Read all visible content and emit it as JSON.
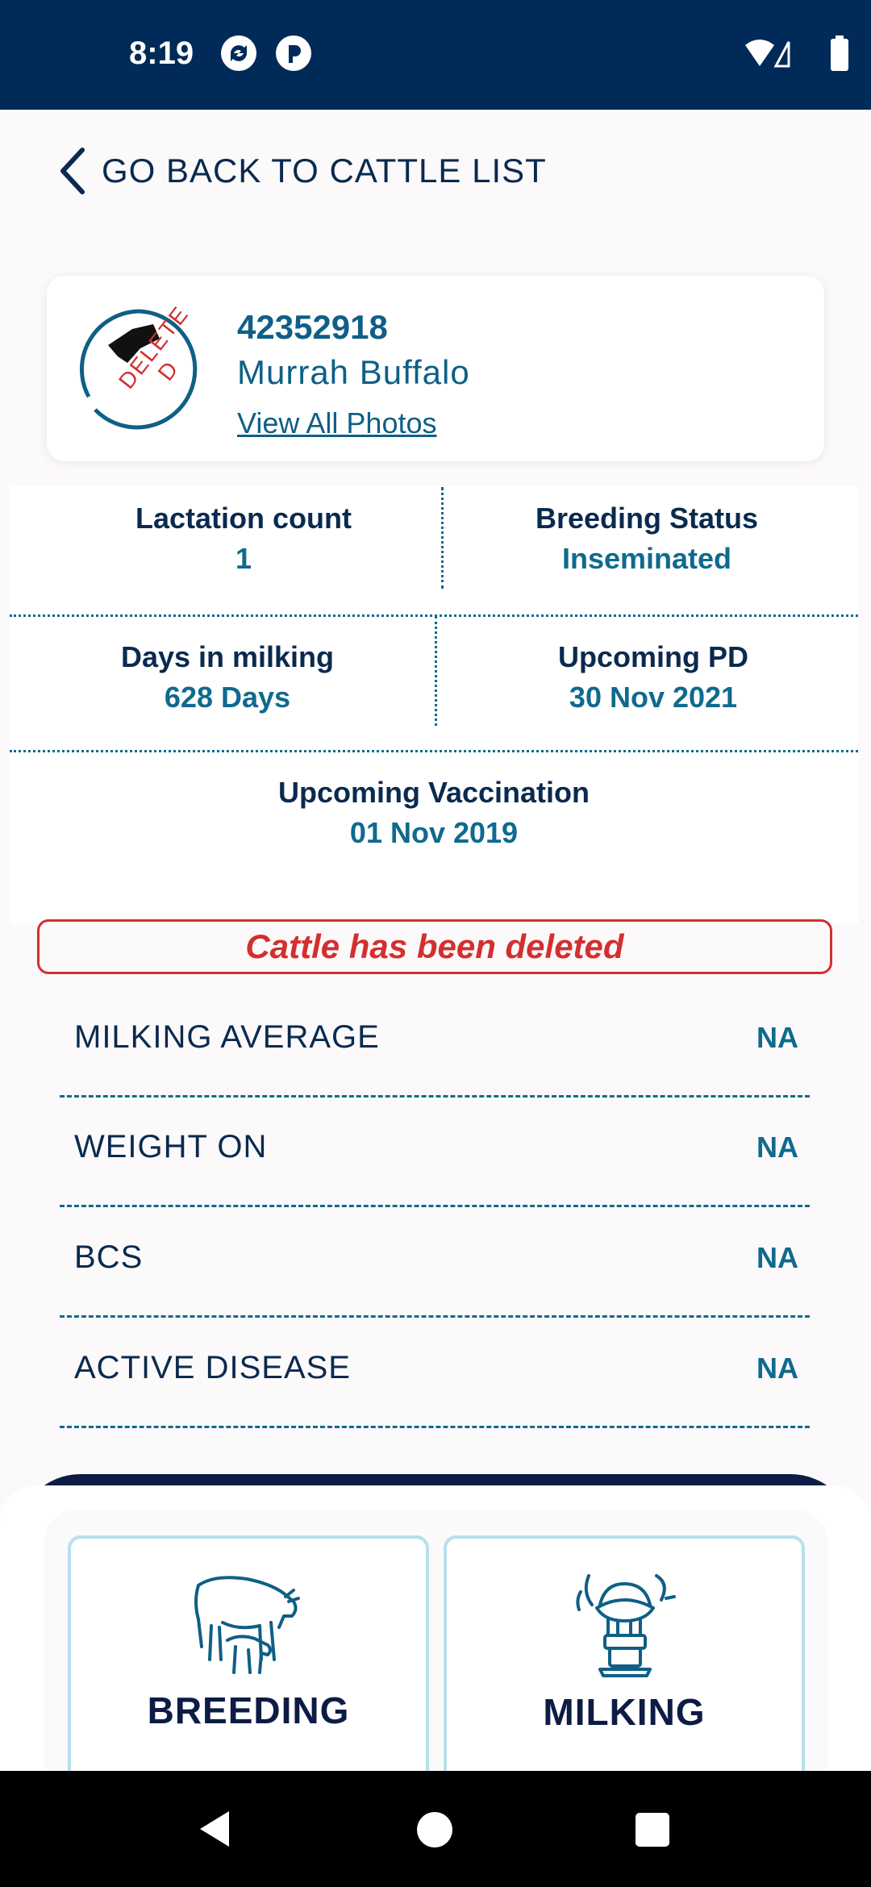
{
  "status_bar": {
    "time": "8:19"
  },
  "header": {
    "back_label": "GO BACK TO CATTLE LIST"
  },
  "profile": {
    "tag_number": "42352918",
    "breed": "Murrah  Buffalo",
    "photos_link": "View All Photos",
    "stamp_text": "DELETED"
  },
  "info": {
    "lactation_label": "Lactation count",
    "lactation_value": "1",
    "breeding_label": "Breeding Status",
    "breeding_value": "Inseminated",
    "milking_days_label": "Days in milking",
    "milking_days_value": "628 Days",
    "pd_label": "Upcoming PD",
    "pd_value": "30 Nov 2021",
    "vaccination_label": "Upcoming Vaccination",
    "vaccination_value": "01 Nov 2019"
  },
  "banner": {
    "message": "Cattle has been deleted"
  },
  "stats": [
    {
      "label": "MILKING AVERAGE",
      "value": "NA"
    },
    {
      "label": "WEIGHT ON",
      "value": "NA"
    },
    {
      "label": "BCS",
      "value": "NA"
    },
    {
      "label": "ACTIVE DISEASE",
      "value": "NA"
    }
  ],
  "bottom_tiles": [
    {
      "label": "BREEDING",
      "icon": "cow-calf-icon"
    },
    {
      "label": "MILKING",
      "icon": "milking-machine-icon"
    }
  ],
  "colors": {
    "status_bar": "#002a57",
    "accent": "#0f6a8e",
    "text_dark": "#0a2a4f",
    "alert": "#d32f2f",
    "tile_border": "#b7dfec"
  }
}
